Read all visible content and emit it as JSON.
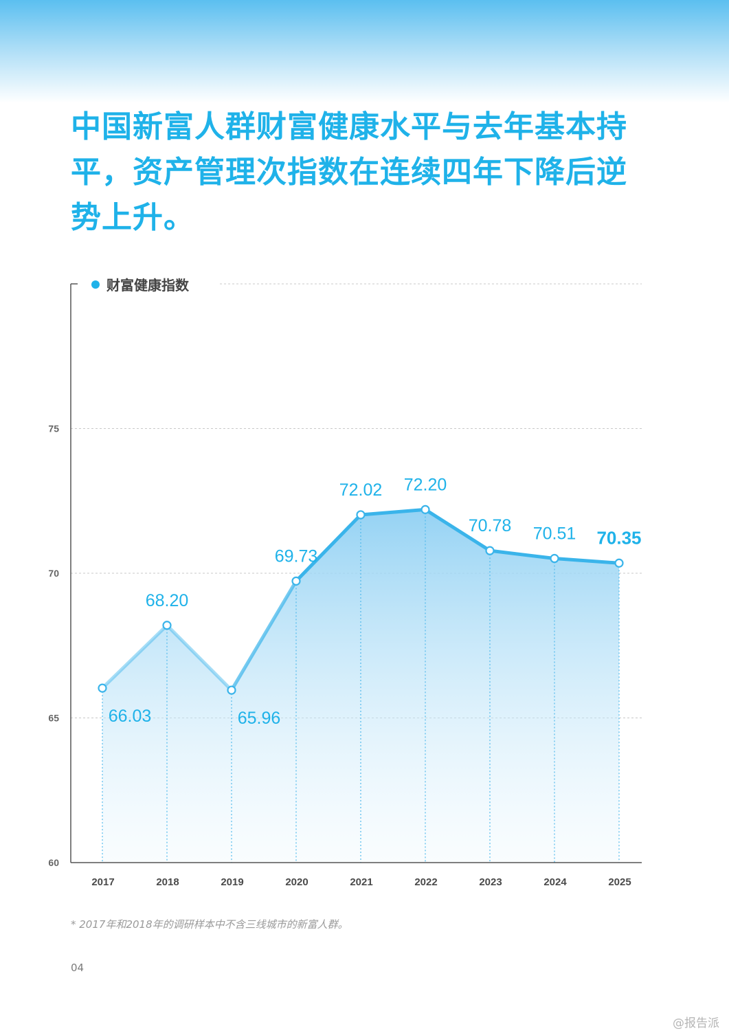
{
  "page": {
    "headline": "中国新富人群财富健康水平与去年基本持平，资产管理次指数在连续四年下降后逆势上升。",
    "footnote": "*  2017年和2018年的调研样本中不含三线城市的新富人群。",
    "page_number": "04",
    "watermark": "@报告派"
  },
  "colors": {
    "accent": "#1fb2e9",
    "line": "#3ab4ea",
    "axis": "#555555",
    "grid": "#c8c8c8",
    "tick_text": "#555555"
  },
  "chart_data": {
    "type": "area",
    "title": "",
    "xlabel": "",
    "ylabel": "",
    "categories": [
      "2017",
      "2018",
      "2019",
      "2020",
      "2021",
      "2022",
      "2023",
      "2024",
      "2025"
    ],
    "series": [
      {
        "name": "财富健康指数",
        "values": [
          66.03,
          68.2,
          65.96,
          69.73,
          72.02,
          72.2,
          70.78,
          70.51,
          70.35
        ],
        "value_labels": [
          "66.03",
          "68.20",
          "65.96",
          "69.73",
          "72.02",
          "72.20",
          "70.78",
          "70.51",
          "70.35"
        ],
        "highlight_last": true
      }
    ],
    "ylim": [
      60,
      80
    ],
    "yticks": [
      "60",
      "65",
      "70",
      "75"
    ],
    "grid": true,
    "legend": "top-left"
  }
}
